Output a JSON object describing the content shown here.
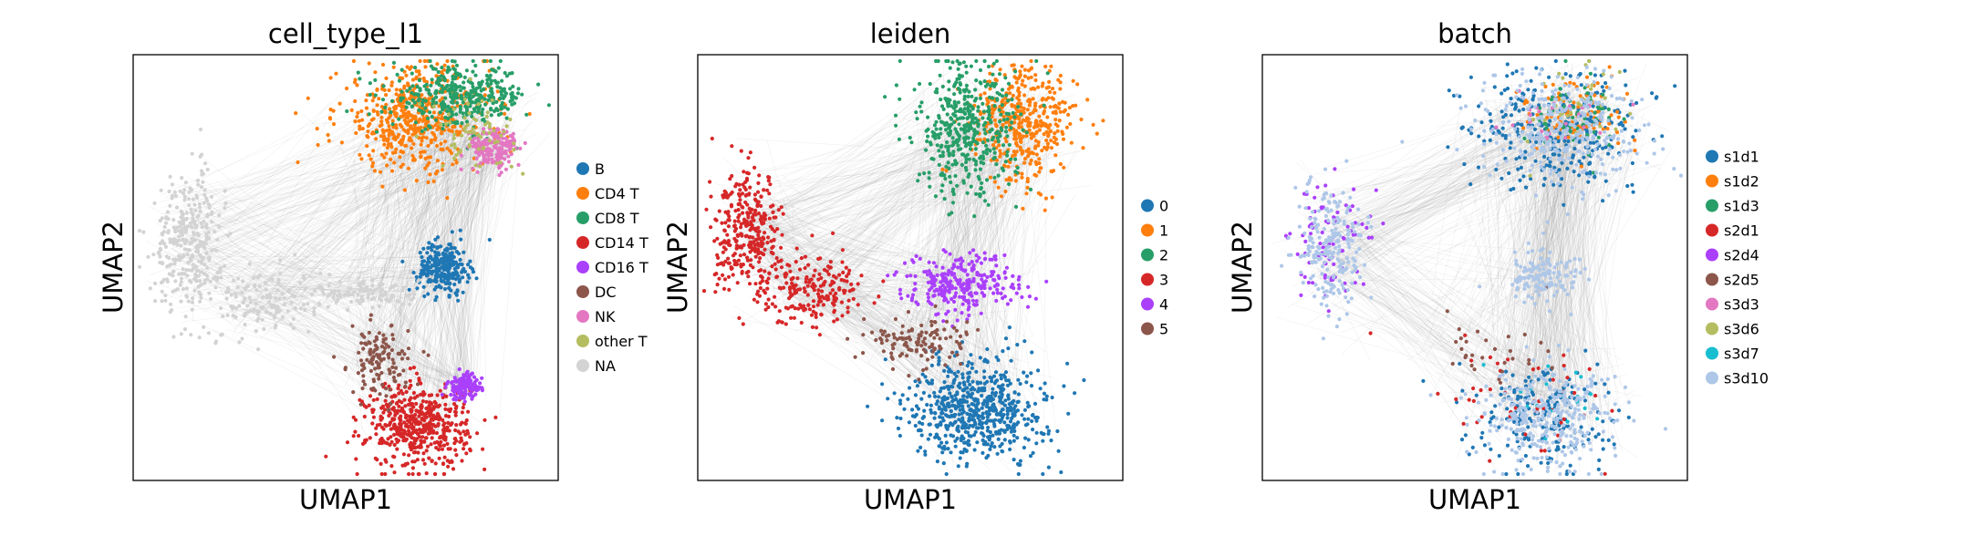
{
  "chart_data": [
    {
      "type": "scatter",
      "title": "cell_type_l1",
      "xlabel": "UMAP1",
      "ylabel": "UMAP2",
      "grid": false,
      "ticks": false,
      "legend_position": "right",
      "series": [
        {
          "name": "B",
          "color": "#1f77b4",
          "clusters": [
            {
              "cx": 0.73,
              "cy": 0.5,
              "sx": 0.03,
              "sy": 0.03,
              "n": 260
            }
          ]
        },
        {
          "name": "CD4 T",
          "color": "#ff7f0e",
          "clusters": [
            {
              "cx": 0.66,
              "cy": 0.85,
              "sx": 0.09,
              "sy": 0.06,
              "n": 520
            }
          ]
        },
        {
          "name": "CD8 T",
          "color": "#279e68",
          "clusters": [
            {
              "cx": 0.77,
              "cy": 0.9,
              "sx": 0.08,
              "sy": 0.035,
              "n": 380
            }
          ]
        },
        {
          "name": "CD14 T",
          "color": "#d62728",
          "clusters": [
            {
              "cx": 0.67,
              "cy": 0.13,
              "sx": 0.06,
              "sy": 0.05,
              "n": 520
            }
          ]
        },
        {
          "name": "CD16 T",
          "color": "#aa40fc",
          "clusters": [
            {
              "cx": 0.78,
              "cy": 0.22,
              "sx": 0.02,
              "sy": 0.015,
              "n": 120
            }
          ]
        },
        {
          "name": "DC",
          "color": "#8c564b",
          "clusters": [
            {
              "cx": 0.58,
              "cy": 0.28,
              "sx": 0.035,
              "sy": 0.04,
              "n": 130
            }
          ]
        },
        {
          "name": "NK",
          "color": "#e377c2",
          "clusters": [
            {
              "cx": 0.85,
              "cy": 0.78,
              "sx": 0.03,
              "sy": 0.025,
              "n": 180
            }
          ]
        },
        {
          "name": "other T",
          "color": "#b5bd61",
          "clusters": [
            {
              "cx": 0.8,
              "cy": 0.82,
              "sx": 0.05,
              "sy": 0.04,
              "n": 70
            }
          ]
        },
        {
          "name": "NA",
          "color": "#d3d3d3",
          "clusters": [
            {
              "cx": 0.13,
              "cy": 0.56,
              "sx": 0.04,
              "sy": 0.08,
              "n": 340
            },
            {
              "cx": 0.3,
              "cy": 0.42,
              "sx": 0.06,
              "sy": 0.04,
              "n": 130
            },
            {
              "cx": 0.55,
              "cy": 0.44,
              "sx": 0.06,
              "sy": 0.02,
              "n": 110
            }
          ]
        }
      ]
    },
    {
      "type": "scatter",
      "title": "leiden",
      "xlabel": "UMAP1",
      "ylabel": "UMAP2",
      "grid": false,
      "ticks": false,
      "legend_position": "right",
      "series": [
        {
          "name": "0",
          "color": "#1f77b4",
          "clusters": [
            {
              "cx": 0.66,
              "cy": 0.17,
              "sx": 0.08,
              "sy": 0.06,
              "n": 620
            }
          ]
        },
        {
          "name": "1",
          "color": "#ff7f0e",
          "clusters": [
            {
              "cx": 0.77,
              "cy": 0.84,
              "sx": 0.06,
              "sy": 0.07,
              "n": 420
            }
          ]
        },
        {
          "name": "2",
          "color": "#279e68",
          "clusters": [
            {
              "cx": 0.63,
              "cy": 0.82,
              "sx": 0.06,
              "sy": 0.08,
              "n": 440
            }
          ]
        },
        {
          "name": "3",
          "color": "#d62728",
          "clusters": [
            {
              "cx": 0.12,
              "cy": 0.58,
              "sx": 0.04,
              "sy": 0.07,
              "n": 320
            },
            {
              "cx": 0.27,
              "cy": 0.45,
              "sx": 0.06,
              "sy": 0.04,
              "n": 200
            }
          ]
        },
        {
          "name": "4",
          "color": "#aa40fc",
          "clusters": [
            {
              "cx": 0.62,
              "cy": 0.46,
              "sx": 0.07,
              "sy": 0.035,
              "n": 280
            }
          ]
        },
        {
          "name": "5",
          "color": "#8c564b",
          "clusters": [
            {
              "cx": 0.52,
              "cy": 0.33,
              "sx": 0.06,
              "sy": 0.03,
              "n": 120
            }
          ]
        }
      ]
    },
    {
      "type": "scatter",
      "title": "batch",
      "xlabel": "UMAP1",
      "ylabel": "UMAP2",
      "grid": false,
      "ticks": false,
      "legend_position": "right",
      "series": [
        {
          "name": "s1d1",
          "color": "#1f77b4",
          "clusters": [
            {
              "cx": 0.7,
              "cy": 0.83,
              "sx": 0.1,
              "sy": 0.07,
              "n": 300
            },
            {
              "cx": 0.67,
              "cy": 0.15,
              "sx": 0.08,
              "sy": 0.06,
              "n": 200
            }
          ]
        },
        {
          "name": "s1d2",
          "color": "#ff7f0e",
          "clusters": [
            {
              "cx": 0.75,
              "cy": 0.86,
              "sx": 0.06,
              "sy": 0.05,
              "n": 90
            }
          ]
        },
        {
          "name": "s1d3",
          "color": "#279e68",
          "clusters": [
            {
              "cx": 0.72,
              "cy": 0.85,
              "sx": 0.07,
              "sy": 0.05,
              "n": 60
            }
          ]
        },
        {
          "name": "s2d1",
          "color": "#d62728",
          "clusters": [
            {
              "cx": 0.6,
              "cy": 0.2,
              "sx": 0.1,
              "sy": 0.07,
              "n": 50
            }
          ]
        },
        {
          "name": "s2d4",
          "color": "#aa40fc",
          "clusters": [
            {
              "cx": 0.16,
              "cy": 0.55,
              "sx": 0.05,
              "sy": 0.08,
              "n": 90
            }
          ]
        },
        {
          "name": "s2d5",
          "color": "#8c564b",
          "clusters": [
            {
              "cx": 0.5,
              "cy": 0.3,
              "sx": 0.08,
              "sy": 0.05,
              "n": 30
            }
          ]
        },
        {
          "name": "s3d3",
          "color": "#e377c2",
          "clusters": [
            {
              "cx": 0.68,
              "cy": 0.84,
              "sx": 0.08,
              "sy": 0.05,
              "n": 25
            }
          ]
        },
        {
          "name": "s3d6",
          "color": "#b5bd61",
          "clusters": [
            {
              "cx": 0.74,
              "cy": 0.86,
              "sx": 0.06,
              "sy": 0.05,
              "n": 30
            }
          ]
        },
        {
          "name": "s3d7",
          "color": "#17becf",
          "clusters": [
            {
              "cx": 0.7,
              "cy": 0.2,
              "sx": 0.07,
              "sy": 0.05,
              "n": 20
            }
          ]
        },
        {
          "name": "s3d10",
          "color": "#aec7e8",
          "clusters": [
            {
              "cx": 0.7,
              "cy": 0.82,
              "sx": 0.1,
              "sy": 0.07,
              "n": 300
            },
            {
              "cx": 0.68,
              "cy": 0.14,
              "sx": 0.08,
              "sy": 0.06,
              "n": 320
            },
            {
              "cx": 0.16,
              "cy": 0.55,
              "sx": 0.04,
              "sy": 0.08,
              "n": 220
            },
            {
              "cx": 0.66,
              "cy": 0.48,
              "sx": 0.05,
              "sy": 0.03,
              "n": 140
            }
          ]
        }
      ]
    }
  ],
  "edge_color": "#808080"
}
